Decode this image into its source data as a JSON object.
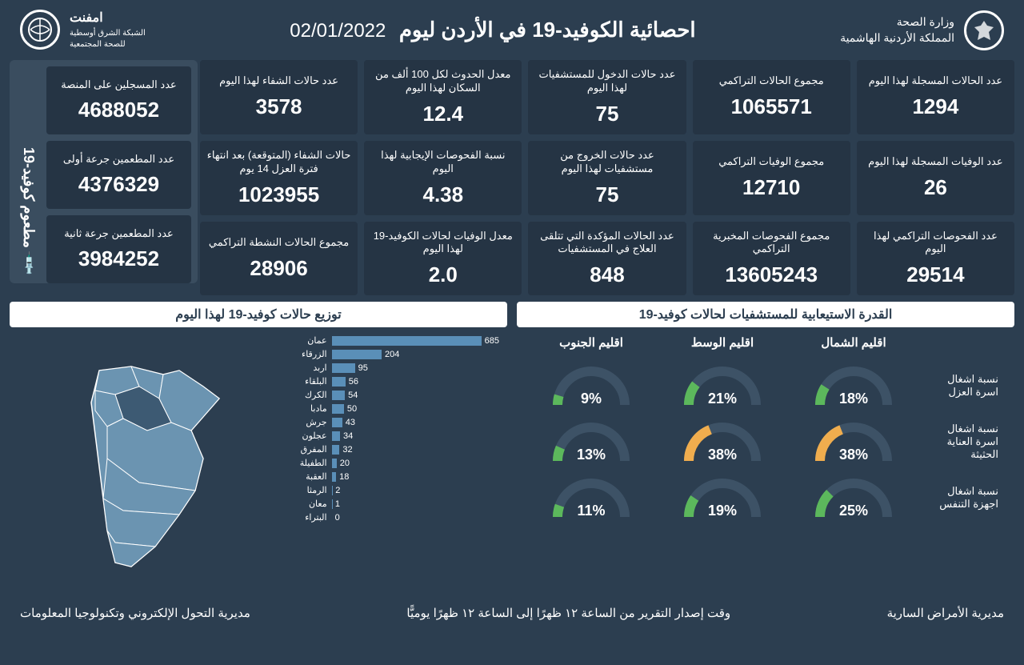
{
  "header": {
    "ministry_line1": "وزارة الصحة",
    "ministry_line2": "المملكة الأردنية الهاشمية",
    "title": "احصائية الكوفيد-19 في الأردن ليوم",
    "date": "02/01/2022",
    "network_line1": "امفنت",
    "network_line2": "الشبكة الشرق أوسطية",
    "network_line3": "للصحة المجتمعية"
  },
  "stats": [
    [
      {
        "label": "عدد الحالات المسجلة لهذا اليوم",
        "value": "1294"
      },
      {
        "label": "مجموع الحالات التراكمي",
        "value": "1065571"
      },
      {
        "label": "عدد حالات الدخول للمستشفيات لهذا اليوم",
        "value": "75"
      },
      {
        "label": "معدل الحدوث لكل 100 ألف من السكان لهذا اليوم",
        "value": "12.4"
      },
      {
        "label": "عدد حالات الشفاء لهذا اليوم",
        "value": "3578"
      }
    ],
    [
      {
        "label": "عدد الوفيات المسجلة لهذا اليوم",
        "value": "26"
      },
      {
        "label": "مجموع الوفيات التراكمي",
        "value": "12710"
      },
      {
        "label": "عدد حالات الخروج من مستشفيات لهذا اليوم",
        "value": "75"
      },
      {
        "label": "نسبة الفحوصات الإيجابية لهذا اليوم",
        "value": "4.38"
      },
      {
        "label": "حالات الشفاء (المتوقعة) بعد انتهاء فترة العزل 14 يوم",
        "value": "1023955"
      }
    ],
    [
      {
        "label": "عدد الفحوصات التراكمي لهذا اليوم",
        "value": "29514"
      },
      {
        "label": "مجموع الفحوصات المخبرية التراكمي",
        "value": "13605243"
      },
      {
        "label": "عدد الحالات المؤكدة التي تتلقى العلاج في المستشفيات",
        "value": "848"
      },
      {
        "label": "معدل الوفيات لحالات الكوفيد-19 لهذا اليوم",
        "value": "2.0"
      },
      {
        "label": "مجموع الحالات النشطة التراكمي",
        "value": "28906"
      }
    ]
  ],
  "vaccine": {
    "side_label": "مطعوم كوفيد-19",
    "cards": [
      {
        "label": "عدد المسجلين على المنصة",
        "value": "4688052"
      },
      {
        "label": "عدد المطعمين جرعة أولى",
        "value": "4376329"
      },
      {
        "label": "عدد المطعمين جرعة ثانية",
        "value": "3984252"
      }
    ]
  },
  "capacity": {
    "title": "القدرة الاستيعابية للمستشفيات لحالات كوفيد-19",
    "regions": [
      "اقليم الشمال",
      "اقليم الوسط",
      "اقليم الجنوب"
    ],
    "rows": [
      {
        "label": "نسبة اشغال اسرة العزل",
        "values": [
          18,
          21,
          9
        ],
        "colors": [
          "#5cb85c",
          "#5cb85c",
          "#5cb85c"
        ]
      },
      {
        "label": "نسبة اشغال اسرة العناية الحثيثة",
        "values": [
          38,
          38,
          13
        ],
        "colors": [
          "#f0ad4e",
          "#f0ad4e",
          "#5cb85c"
        ]
      },
      {
        "label": "نسبة اشغال اجهزة التنفس",
        "values": [
          25,
          19,
          11
        ],
        "colors": [
          "#5cb85c",
          "#5cb85c",
          "#5cb85c"
        ]
      }
    ],
    "track_color": "#3d5266"
  },
  "distribution": {
    "title": "توزيع حالات كوفيد-19 لهذا اليوم",
    "bar_color": "#5a8fb8",
    "max": 685,
    "items": [
      {
        "name": "عمان",
        "value": 685
      },
      {
        "name": "الزرقاء",
        "value": 204
      },
      {
        "name": "اربد",
        "value": 95
      },
      {
        "name": "البلقاء",
        "value": 56
      },
      {
        "name": "الكرك",
        "value": 54
      },
      {
        "name": "مادبا",
        "value": 50
      },
      {
        "name": "جرش",
        "value": 43
      },
      {
        "name": "عجلون",
        "value": 34
      },
      {
        "name": "المفرق",
        "value": 32
      },
      {
        "name": "الطفيلة",
        "value": 20
      },
      {
        "name": "العقبة",
        "value": 18
      },
      {
        "name": "الرمثا",
        "value": 2
      },
      {
        "name": "معان",
        "value": 1
      },
      {
        "name": "البتراء",
        "value": 0
      }
    ],
    "map_fill": "#6b94b1",
    "map_highlight": "#3d5a73"
  },
  "footer": {
    "right": "مديرية الأمراض السارية",
    "center": "وقت إصدار التقرير من الساعة ١٢ ظهرًا إلى الساعة ١٢ ظهرًا يوميًّا",
    "left": "مديرية التحول الإلكتروني وتكنولوجيا المعلومات"
  }
}
